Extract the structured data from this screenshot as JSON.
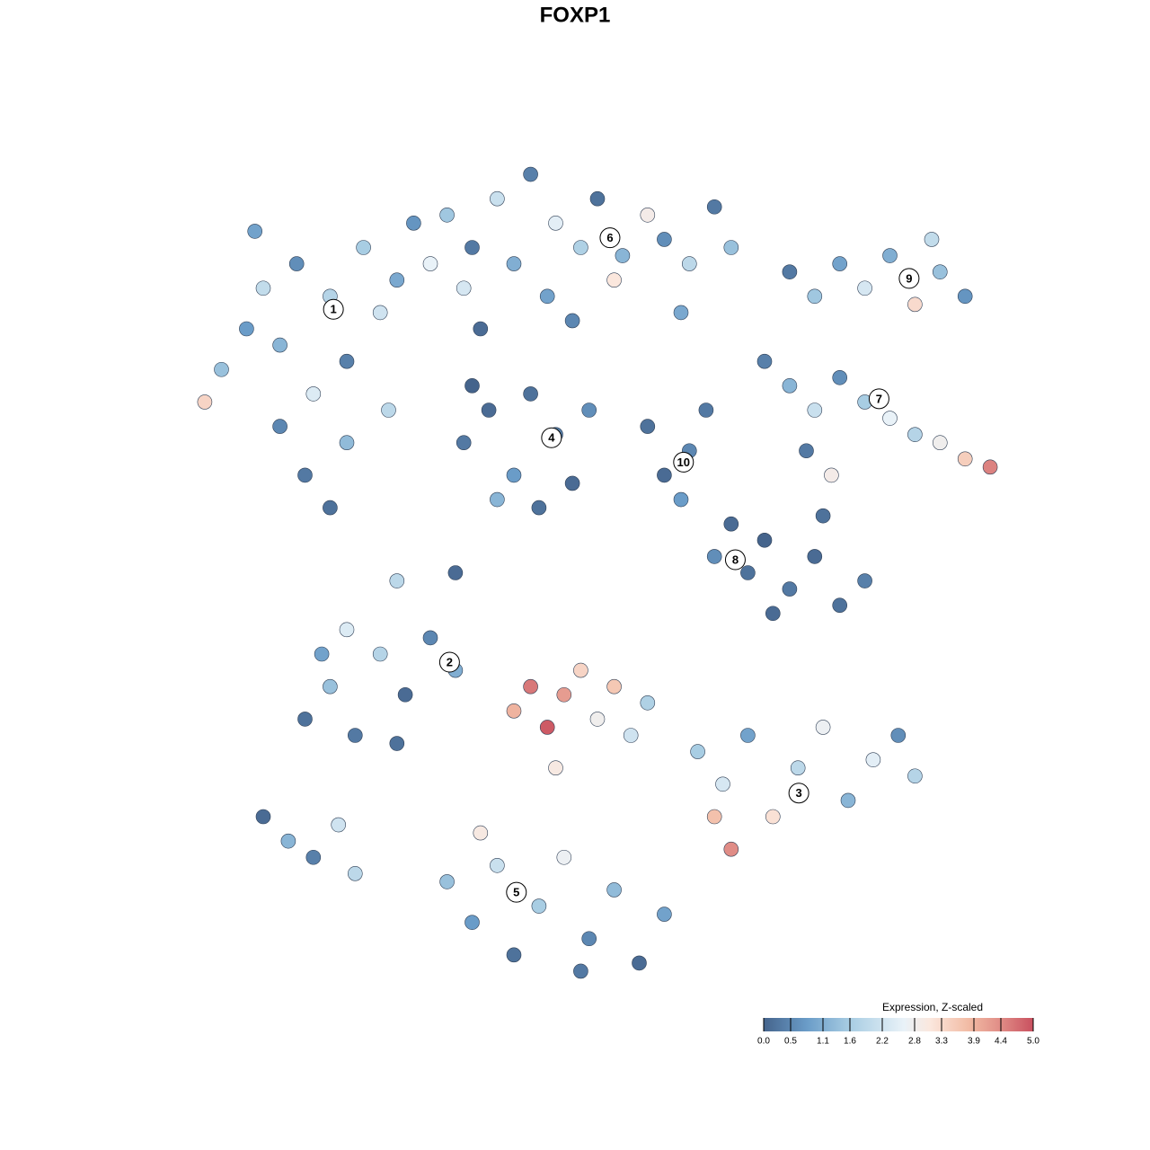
{
  "chart_data": {
    "type": "scatter",
    "title": "FOXP1",
    "xlim": [
      0,
      100
    ],
    "ylim": [
      0,
      100
    ],
    "colorbar_title": "Expression, Z-scaled",
    "colorbar_ticks": [
      {
        "value": 0,
        "label": "0.0"
      },
      0.5,
      1.1,
      1.6,
      2.2,
      2.8,
      3.3,
      3.9,
      4.4,
      {
        "value": 5,
        "label": "5.0"
      }
    ],
    "colorbar_lim": [
      0,
      5
    ],
    "colorscale": [
      [
        0,
        "#45648c"
      ],
      [
        0.8,
        "#6a9cc8"
      ],
      [
        1.6,
        "#a8cde3"
      ],
      [
        2.6,
        "#e9f2f8"
      ],
      [
        3.1,
        "#fbe7dd"
      ],
      [
        3.8,
        "#f2bba4"
      ],
      [
        4.4,
        "#e08c86"
      ],
      [
        5,
        "#c9505f"
      ]
    ],
    "points": [
      {
        "x": 5,
        "y": 75,
        "value": 1.4
      },
      {
        "x": 8,
        "y": 80,
        "value": 0.8
      },
      {
        "x": 10,
        "y": 85,
        "value": 2.0
      },
      {
        "x": 12,
        "y": 78,
        "value": 1.2
      },
      {
        "x": 14,
        "y": 88,
        "value": 0.6
      },
      {
        "x": 16,
        "y": 72,
        "value": 2.4
      },
      {
        "x": 18,
        "y": 84,
        "value": 1.8
      },
      {
        "x": 20,
        "y": 76,
        "value": 0.4
      },
      {
        "x": 22,
        "y": 90,
        "value": 1.6
      },
      {
        "x": 24,
        "y": 82,
        "value": 2.2
      },
      {
        "x": 26,
        "y": 86,
        "value": 1.0
      },
      {
        "x": 28,
        "y": 93,
        "value": 0.7
      },
      {
        "x": 30,
        "y": 88,
        "value": 2.6
      },
      {
        "x": 15,
        "y": 62,
        "value": 0.3
      },
      {
        "x": 18,
        "y": 58,
        "value": 0.2
      },
      {
        "x": 20,
        "y": 66,
        "value": 1.3
      },
      {
        "x": 12,
        "y": 68,
        "value": 0.5
      },
      {
        "x": 25,
        "y": 70,
        "value": 1.9
      },
      {
        "x": 3,
        "y": 71,
        "value": 3.4
      },
      {
        "x": 9,
        "y": 92,
        "value": 0.9
      },
      {
        "x": 32,
        "y": 94,
        "value": 1.5
      },
      {
        "x": 35,
        "y": 90,
        "value": 0.3
      },
      {
        "x": 38,
        "y": 96,
        "value": 2.1
      },
      {
        "x": 40,
        "y": 88,
        "value": 1.1
      },
      {
        "x": 42,
        "y": 99,
        "value": 0.4
      },
      {
        "x": 45,
        "y": 93,
        "value": 2.5
      },
      {
        "x": 48,
        "y": 90,
        "value": 1.7
      },
      {
        "x": 50,
        "y": 96,
        "value": 0.2
      },
      {
        "x": 53,
        "y": 89,
        "value": 1.2
      },
      {
        "x": 56,
        "y": 94,
        "value": 2.9
      },
      {
        "x": 58,
        "y": 91,
        "value": 0.6
      },
      {
        "x": 61,
        "y": 88,
        "value": 1.9
      },
      {
        "x": 64,
        "y": 95,
        "value": 0.3
      },
      {
        "x": 66,
        "y": 90,
        "value": 1.4
      },
      {
        "x": 34,
        "y": 85,
        "value": 2.3
      },
      {
        "x": 44,
        "y": 84,
        "value": 0.9
      },
      {
        "x": 60,
        "y": 82,
        "value": 1.0
      },
      {
        "x": 52,
        "y": 86,
        "value": 3.1
      },
      {
        "x": 36,
        "y": 80,
        "value": 0.1
      },
      {
        "x": 47,
        "y": 81,
        "value": 0.5
      },
      {
        "x": 34,
        "y": 66,
        "value": 0.3
      },
      {
        "x": 37,
        "y": 70,
        "value": 0.1
      },
      {
        "x": 40,
        "y": 62,
        "value": 0.8
      },
      {
        "x": 42,
        "y": 72,
        "value": 0.2
      },
      {
        "x": 45,
        "y": 67,
        "value": 0.4
      },
      {
        "x": 47,
        "y": 61,
        "value": 0.1
      },
      {
        "x": 49,
        "y": 70,
        "value": 0.6
      },
      {
        "x": 43,
        "y": 58,
        "value": 0.2
      },
      {
        "x": 38,
        "y": 59,
        "value": 1.2
      },
      {
        "x": 35,
        "y": 73,
        "value": 0.0
      },
      {
        "x": 56,
        "y": 68,
        "value": 0.2
      },
      {
        "x": 58,
        "y": 62,
        "value": 0.1
      },
      {
        "x": 61,
        "y": 65,
        "value": 0.5
      },
      {
        "x": 63,
        "y": 70,
        "value": 0.3
      },
      {
        "x": 60,
        "y": 59,
        "value": 0.8
      },
      {
        "x": 73,
        "y": 87,
        "value": 0.3
      },
      {
        "x": 76,
        "y": 84,
        "value": 1.5
      },
      {
        "x": 79,
        "y": 88,
        "value": 0.9
      },
      {
        "x": 82,
        "y": 85,
        "value": 2.3
      },
      {
        "x": 85,
        "y": 89,
        "value": 1.1
      },
      {
        "x": 88,
        "y": 83,
        "value": 3.3
      },
      {
        "x": 91,
        "y": 87,
        "value": 1.4
      },
      {
        "x": 94,
        "y": 84,
        "value": 0.7
      },
      {
        "x": 90,
        "y": 91,
        "value": 2.0
      },
      {
        "x": 70,
        "y": 76,
        "value": 0.4
      },
      {
        "x": 73,
        "y": 73,
        "value": 1.2
      },
      {
        "x": 76,
        "y": 70,
        "value": 2.1
      },
      {
        "x": 79,
        "y": 74,
        "value": 0.6
      },
      {
        "x": 82,
        "y": 71,
        "value": 1.6
      },
      {
        "x": 85,
        "y": 69,
        "value": 2.6
      },
      {
        "x": 88,
        "y": 67,
        "value": 1.8
      },
      {
        "x": 91,
        "y": 66,
        "value": 2.8
      },
      {
        "x": 94,
        "y": 64,
        "value": 3.5
      },
      {
        "x": 97,
        "y": 63,
        "value": 4.5
      },
      {
        "x": 75,
        "y": 65,
        "value": 0.3
      },
      {
        "x": 78,
        "y": 62,
        "value": 2.9
      },
      {
        "x": 66,
        "y": 56,
        "value": 0.1
      },
      {
        "x": 68,
        "y": 50,
        "value": 0.2
      },
      {
        "x": 70,
        "y": 54,
        "value": 0.0
      },
      {
        "x": 73,
        "y": 48,
        "value": 0.3
      },
      {
        "x": 76,
        "y": 52,
        "value": 0.1
      },
      {
        "x": 79,
        "y": 46,
        "value": 0.2
      },
      {
        "x": 82,
        "y": 49,
        "value": 0.4
      },
      {
        "x": 71,
        "y": 45,
        "value": 0.1
      },
      {
        "x": 64,
        "y": 52,
        "value": 0.6
      },
      {
        "x": 77,
        "y": 57,
        "value": 0.2
      },
      {
        "x": 15,
        "y": 32,
        "value": 0.2
      },
      {
        "x": 18,
        "y": 36,
        "value": 1.4
      },
      {
        "x": 21,
        "y": 30,
        "value": 0.3
      },
      {
        "x": 24,
        "y": 40,
        "value": 1.8
      },
      {
        "x": 27,
        "y": 35,
        "value": 0.1
      },
      {
        "x": 30,
        "y": 42,
        "value": 0.5
      },
      {
        "x": 33,
        "y": 38,
        "value": 1.1
      },
      {
        "x": 20,
        "y": 43,
        "value": 2.4
      },
      {
        "x": 26,
        "y": 29,
        "value": 0.2
      },
      {
        "x": 17,
        "y": 40,
        "value": 0.9
      },
      {
        "x": 10,
        "y": 20,
        "value": 0.1
      },
      {
        "x": 13,
        "y": 17,
        "value": 1.2
      },
      {
        "x": 16,
        "y": 15,
        "value": 0.4
      },
      {
        "x": 19,
        "y": 19,
        "value": 2.2
      },
      {
        "x": 21,
        "y": 13,
        "value": 1.9
      },
      {
        "x": 40,
        "y": 33,
        "value": 3.9
      },
      {
        "x": 42,
        "y": 36,
        "value": 4.6
      },
      {
        "x": 44,
        "y": 31,
        "value": 4.9
      },
      {
        "x": 46,
        "y": 35,
        "value": 4.2
      },
      {
        "x": 48,
        "y": 38,
        "value": 3.4
      },
      {
        "x": 50,
        "y": 32,
        "value": 2.8
      },
      {
        "x": 52,
        "y": 36,
        "value": 3.6
      },
      {
        "x": 54,
        "y": 30,
        "value": 2.2
      },
      {
        "x": 56,
        "y": 34,
        "value": 1.7
      },
      {
        "x": 45,
        "y": 26,
        "value": 3.0
      },
      {
        "x": 62,
        "y": 28,
        "value": 1.6
      },
      {
        "x": 65,
        "y": 24,
        "value": 2.3
      },
      {
        "x": 68,
        "y": 30,
        "value": 0.9
      },
      {
        "x": 71,
        "y": 20,
        "value": 3.2
      },
      {
        "x": 74,
        "y": 26,
        "value": 1.9
      },
      {
        "x": 77,
        "y": 31,
        "value": 2.7
      },
      {
        "x": 80,
        "y": 22,
        "value": 1.2
      },
      {
        "x": 83,
        "y": 27,
        "value": 2.5
      },
      {
        "x": 86,
        "y": 30,
        "value": 0.6
      },
      {
        "x": 88,
        "y": 25,
        "value": 1.8
      },
      {
        "x": 66,
        "y": 16,
        "value": 4.4
      },
      {
        "x": 64,
        "y": 20,
        "value": 3.7
      },
      {
        "x": 32,
        "y": 12,
        "value": 1.4
      },
      {
        "x": 35,
        "y": 7,
        "value": 0.8
      },
      {
        "x": 38,
        "y": 14,
        "value": 2.1
      },
      {
        "x": 40,
        "y": 3,
        "value": 0.2
      },
      {
        "x": 43,
        "y": 9,
        "value": 1.6
      },
      {
        "x": 46,
        "y": 15,
        "value": 2.7
      },
      {
        "x": 49,
        "y": 5,
        "value": 0.5
      },
      {
        "x": 52,
        "y": 11,
        "value": 1.3
      },
      {
        "x": 55,
        "y": 2,
        "value": 0.1
      },
      {
        "x": 58,
        "y": 8,
        "value": 0.9
      },
      {
        "x": 36,
        "y": 18,
        "value": 3.0
      },
      {
        "x": 48,
        "y": 1,
        "value": 0.3
      },
      {
        "x": 26,
        "y": 49,
        "value": 1.9
      },
      {
        "x": 33,
        "y": 50,
        "value": 0.1
      }
    ],
    "cluster_labels": [
      {
        "label": "1",
        "x": 18.4,
        "y": 82.4
      },
      {
        "label": "2",
        "x": 32.3,
        "y": 39.0
      },
      {
        "label": "3",
        "x": 74.1,
        "y": 22.9
      },
      {
        "label": "4",
        "x": 44.5,
        "y": 66.6
      },
      {
        "label": "5",
        "x": 40.3,
        "y": 10.7
      },
      {
        "label": "6",
        "x": 51.5,
        "y": 91.2
      },
      {
        "label": "7",
        "x": 83.7,
        "y": 71.4
      },
      {
        "label": "8",
        "x": 66.5,
        "y": 51.6
      },
      {
        "label": "9",
        "x": 87.3,
        "y": 86.2
      },
      {
        "label": "10",
        "x": 60.3,
        "y": 63.6
      }
    ]
  }
}
